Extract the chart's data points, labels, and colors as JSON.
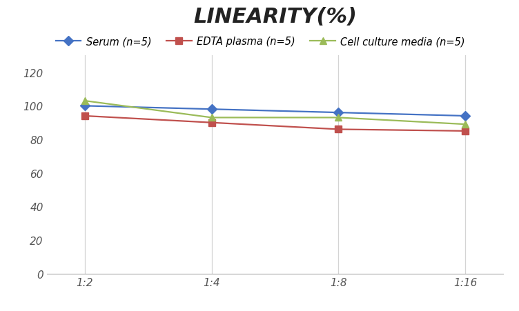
{
  "title": "LINEARITY(%)",
  "x_labels": [
    "1:2",
    "1:4",
    "1:8",
    "1:16"
  ],
  "x_positions": [
    0,
    1,
    2,
    3
  ],
  "series": [
    {
      "label": "Serum (n=5)",
      "color": "#4472C4",
      "marker": "D",
      "values": [
        100,
        98,
        96,
        94
      ]
    },
    {
      "label": "EDTA plasma (n=5)",
      "color": "#C0504D",
      "marker": "s",
      "values": [
        94,
        90,
        86,
        85
      ]
    },
    {
      "label": "Cell culture media (n=5)",
      "color": "#9BBB59",
      "marker": "^",
      "values": [
        103,
        93,
        93,
        89
      ]
    }
  ],
  "ylim": [
    0,
    130
  ],
  "yticks": [
    0,
    20,
    40,
    60,
    80,
    100,
    120
  ],
  "background_color": "#ffffff",
  "grid_color": "#d4d4d4",
  "title_fontsize": 22,
  "legend_fontsize": 10.5,
  "tick_fontsize": 11
}
